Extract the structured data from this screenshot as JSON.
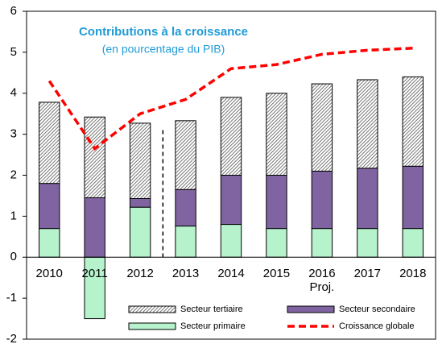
{
  "chart_data": {
    "type": "bar",
    "stacked": true,
    "title": "Contributions à la croissance",
    "subtitle": "(en pourcentage du PIB)",
    "annotation": "Proj.",
    "categories": [
      "2010",
      "2011",
      "2012",
      "2013",
      "2014",
      "2015",
      "2016",
      "2017",
      "2018"
    ],
    "series": [
      {
        "name": "Secteur primaire",
        "color": "#b6f2cc",
        "values": [
          0.7,
          -1.5,
          1.22,
          0.76,
          0.8,
          0.7,
          0.7,
          0.7,
          0.7
        ]
      },
      {
        "name": "Secteur secondaire",
        "color": "#8064a2",
        "values": [
          1.1,
          1.45,
          0.21,
          0.89,
          1.2,
          1.3,
          1.4,
          1.47,
          1.52
        ]
      },
      {
        "name": "Secteur tertiaire",
        "color": "#555555",
        "pattern": "hatch",
        "values": [
          1.98,
          1.97,
          1.84,
          1.68,
          1.9,
          2.0,
          2.13,
          2.16,
          2.18
        ]
      },
      {
        "name": "Croissance globale",
        "color": "#ff0000",
        "type": "line",
        "values": [
          4.3,
          2.65,
          3.5,
          3.85,
          4.6,
          4.7,
          4.95,
          5.05,
          5.1
        ]
      }
    ],
    "ylim": [
      -2,
      6
    ],
    "yticks": [
      -2,
      -1,
      0,
      1,
      2,
      3,
      4,
      5,
      6
    ]
  }
}
